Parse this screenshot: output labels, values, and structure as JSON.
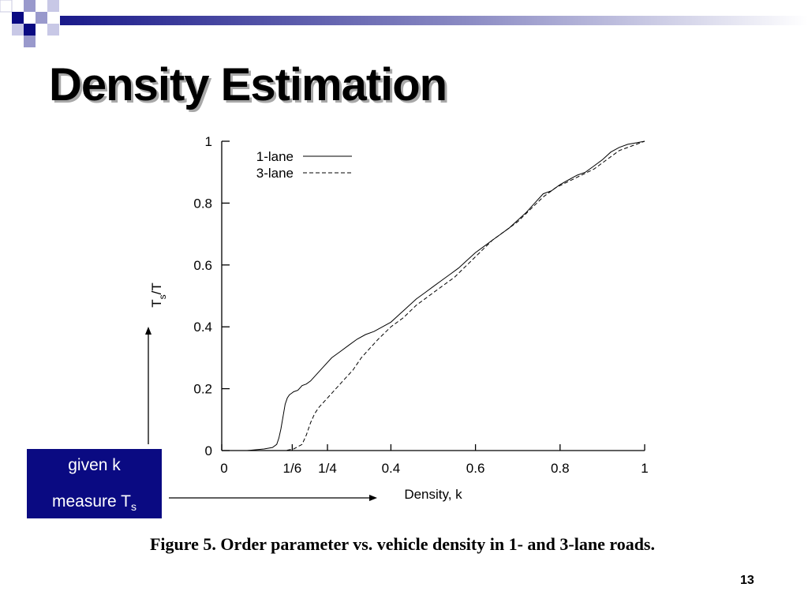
{
  "slide": {
    "title": "Density Estimation",
    "caption": "Figure 5. Order parameter vs. vehicle density in 1- and 3-lane roads.",
    "page_number": "13",
    "annotation": {
      "line1": "given k",
      "line2_main": "measure T",
      "line2_sub": "s"
    },
    "colors": {
      "accent": "#0a0a82",
      "logo_light": "#9999cc"
    }
  },
  "chart_data": {
    "type": "line",
    "title": "",
    "xlabel": "Density, k",
    "ylabel_main": "T",
    "ylabel_sub": "s",
    "ylabel_tail": "/T",
    "xlim": [
      0,
      1
    ],
    "ylim": [
      0,
      1
    ],
    "x_ticks": [
      {
        "value": 0,
        "label": "0"
      },
      {
        "value": 0.1667,
        "label": "1/6"
      },
      {
        "value": 0.25,
        "label": "1/4"
      },
      {
        "value": 0.4,
        "label": "0.4"
      },
      {
        "value": 0.6,
        "label": "0.6"
      },
      {
        "value": 0.8,
        "label": "0.8"
      },
      {
        "value": 1,
        "label": "1"
      }
    ],
    "y_ticks": [
      {
        "value": 0,
        "label": "0"
      },
      {
        "value": 0.2,
        "label": "0.2"
      },
      {
        "value": 0.4,
        "label": "0.4"
      },
      {
        "value": 0.6,
        "label": "0.6"
      },
      {
        "value": 0.8,
        "label": "0.8"
      },
      {
        "value": 1,
        "label": "1"
      }
    ],
    "grid": false,
    "legend_position": "top-left",
    "series": [
      {
        "name": "1-lane",
        "style": "solid",
        "x": [
          0.06,
          0.1,
          0.12,
          0.13,
          0.135,
          0.14,
          0.145,
          0.15,
          0.155,
          0.16,
          0.165,
          0.17,
          0.18,
          0.19,
          0.2,
          0.21,
          0.22,
          0.24,
          0.26,
          0.28,
          0.3,
          0.32,
          0.34,
          0.36,
          0.38,
          0.4,
          0.42,
          0.44,
          0.46,
          0.48,
          0.5,
          0.52,
          0.54,
          0.56,
          0.58,
          0.6,
          0.62,
          0.64,
          0.66,
          0.68,
          0.7,
          0.72,
          0.74,
          0.76,
          0.78,
          0.8,
          0.82,
          0.84,
          0.86,
          0.88,
          0.9,
          0.92,
          0.94,
          0.96,
          0.98,
          1.0
        ],
        "y": [
          0.0,
          0.005,
          0.01,
          0.02,
          0.04,
          0.07,
          0.11,
          0.15,
          0.17,
          0.18,
          0.185,
          0.19,
          0.195,
          0.21,
          0.215,
          0.225,
          0.24,
          0.27,
          0.3,
          0.32,
          0.34,
          0.36,
          0.375,
          0.385,
          0.4,
          0.415,
          0.44,
          0.465,
          0.49,
          0.51,
          0.53,
          0.55,
          0.57,
          0.59,
          0.615,
          0.64,
          0.66,
          0.68,
          0.7,
          0.72,
          0.745,
          0.77,
          0.8,
          0.83,
          0.84,
          0.86,
          0.875,
          0.89,
          0.9,
          0.92,
          0.94,
          0.965,
          0.98,
          0.99,
          0.995,
          1.0
        ]
      },
      {
        "name": "3-lane",
        "style": "dashed",
        "x": [
          0.15,
          0.17,
          0.19,
          0.2,
          0.21,
          0.22,
          0.23,
          0.25,
          0.27,
          0.29,
          0.31,
          0.33,
          0.35,
          0.37,
          0.4,
          0.43,
          0.46,
          0.49,
          0.52,
          0.55,
          0.58,
          0.61,
          0.64,
          0.67,
          0.7,
          0.73,
          0.76,
          0.79,
          0.82,
          0.85,
          0.88,
          0.91,
          0.94,
          0.97,
          1.0
        ],
        "y": [
          0.0,
          0.005,
          0.02,
          0.05,
          0.09,
          0.12,
          0.14,
          0.17,
          0.2,
          0.23,
          0.26,
          0.3,
          0.33,
          0.36,
          0.4,
          0.43,
          0.47,
          0.5,
          0.53,
          0.56,
          0.6,
          0.64,
          0.68,
          0.71,
          0.74,
          0.78,
          0.82,
          0.85,
          0.87,
          0.89,
          0.91,
          0.94,
          0.97,
          0.985,
          1.0
        ]
      }
    ]
  }
}
